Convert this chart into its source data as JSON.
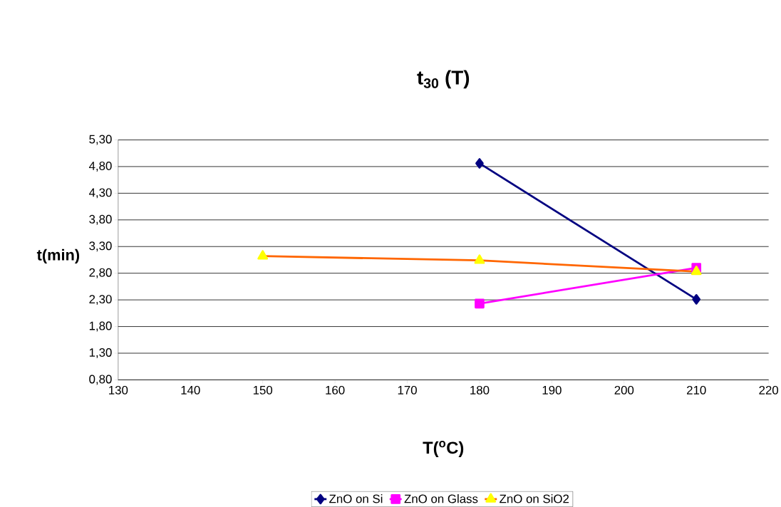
{
  "chart_data": {
    "type": "line",
    "title": "t$_{30}$ (T)",
    "xlabel": "T($^{o}$C)",
    "ylabel": "t(min)",
    "xlim": [
      130,
      220
    ],
    "xticks": [
      130,
      140,
      150,
      160,
      170,
      180,
      190,
      200,
      210,
      220
    ],
    "ylim": [
      0.8,
      5.3
    ],
    "yticks": [
      {
        "value": 0.8,
        "label": "0,80"
      },
      {
        "value": 1.3,
        "label": "1,30"
      },
      {
        "value": 1.8,
        "label": "1,80"
      },
      {
        "value": 2.3,
        "label": "2,30"
      },
      {
        "value": 2.8,
        "label": "2,80"
      },
      {
        "value": 3.3,
        "label": "3,30"
      },
      {
        "value": 3.8,
        "label": "3,80"
      },
      {
        "value": 4.3,
        "label": "4,30"
      },
      {
        "value": 4.8,
        "label": "4,80"
      },
      {
        "value": 5.3,
        "label": "5,30"
      }
    ],
    "grid": "y",
    "legend": "bottom",
    "line_style": "solid",
    "series": [
      {
        "name": "ZnO on Si",
        "color": "#000080",
        "marker": "diamond",
        "x": [
          180,
          210
        ],
        "values": [
          4.86,
          2.31
        ]
      },
      {
        "name": "ZnO on Glass",
        "color": "#ff00ff",
        "marker": "square",
        "x": [
          180,
          210
        ],
        "values": [
          2.23,
          2.9
        ]
      },
      {
        "name": "ZnO on SiO2",
        "color": "#ff6600",
        "marker": "triangle",
        "x": [
          150,
          180,
          210
        ],
        "values": [
          3.12,
          3.04,
          2.83
        ]
      }
    ]
  }
}
